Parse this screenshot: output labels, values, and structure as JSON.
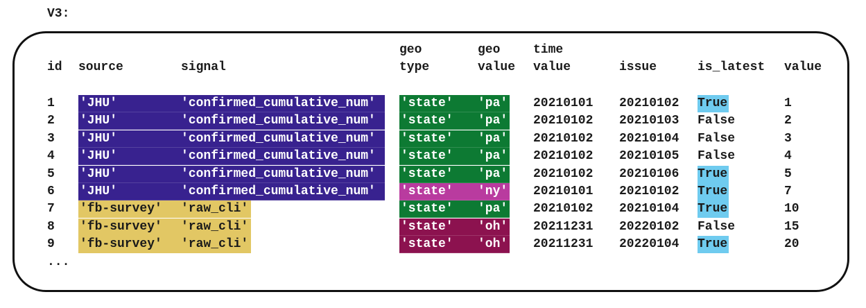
{
  "title": "V3:",
  "columns": [
    {
      "key": "id",
      "label": "id"
    },
    {
      "key": "source",
      "label": "source"
    },
    {
      "key": "signal",
      "label": "signal"
    },
    {
      "key": "geo_type",
      "label": "geo\ntype"
    },
    {
      "key": "geo_value",
      "label": "geo\nvalue"
    },
    {
      "key": "time_value",
      "label": "time\nvalue"
    },
    {
      "key": "issue",
      "label": "issue"
    },
    {
      "key": "is_latest",
      "label": "is_latest"
    },
    {
      "key": "value",
      "label": "value"
    }
  ],
  "colors": {
    "jhu": "#38228f",
    "fb": "#e2c764",
    "pa": "#0d7a33",
    "ny": "#b93b9f",
    "oh": "#8c124f",
    "latest": "#6fcbef"
  },
  "rows": [
    {
      "id": "1",
      "source": "'JHU'",
      "signal": "'confirmed_cumulative_num'",
      "geo_type": "'state'",
      "geo_value": "'pa'",
      "time_value": "20210101",
      "issue": "20210102",
      "is_latest": "True",
      "value": "1"
    },
    {
      "id": "2",
      "source": "'JHU'",
      "signal": "'confirmed_cumulative_num'",
      "geo_type": "'state'",
      "geo_value": "'pa'",
      "time_value": "20210102",
      "issue": "20210103",
      "is_latest": "False",
      "value": "2"
    },
    {
      "id": "3",
      "source": "'JHU'",
      "signal": "'confirmed_cumulative_num'",
      "geo_type": "'state'",
      "geo_value": "'pa'",
      "time_value": "20210102",
      "issue": "20210104",
      "is_latest": "False",
      "value": "3"
    },
    {
      "id": "4",
      "source": "'JHU'",
      "signal": "'confirmed_cumulative_num'",
      "geo_type": "'state'",
      "geo_value": "'pa'",
      "time_value": "20210102",
      "issue": "20210105",
      "is_latest": "False",
      "value": "4"
    },
    {
      "id": "5",
      "source": "'JHU'",
      "signal": "'confirmed_cumulative_num'",
      "geo_type": "'state'",
      "geo_value": "'pa'",
      "time_value": "20210102",
      "issue": "20210106",
      "is_latest": "True",
      "value": "5"
    },
    {
      "id": "6",
      "source": "'JHU'",
      "signal": "'confirmed_cumulative_num'",
      "geo_type": "'state'",
      "geo_value": "'ny'",
      "time_value": "20210101",
      "issue": "20210102",
      "is_latest": "True",
      "value": "7"
    },
    {
      "id": "7",
      "source": "'fb-survey'",
      "signal": "'raw_cli'",
      "geo_type": "'state'",
      "geo_value": "'pa'",
      "time_value": "20210102",
      "issue": "20210104",
      "is_latest": "True",
      "value": "10"
    },
    {
      "id": "8",
      "source": "'fb-survey'",
      "signal": "'raw_cli'",
      "geo_type": "'state'",
      "geo_value": "'oh'",
      "time_value": "20211231",
      "issue": "20220102",
      "is_latest": "False",
      "value": "15"
    },
    {
      "id": "9",
      "source": "'fb-survey'",
      "signal": "'raw_cli'",
      "geo_type": "'state'",
      "geo_value": "'oh'",
      "time_value": "20211231",
      "issue": "20220104",
      "is_latest": "True",
      "value": "20"
    }
  ],
  "ellipsis": "..."
}
